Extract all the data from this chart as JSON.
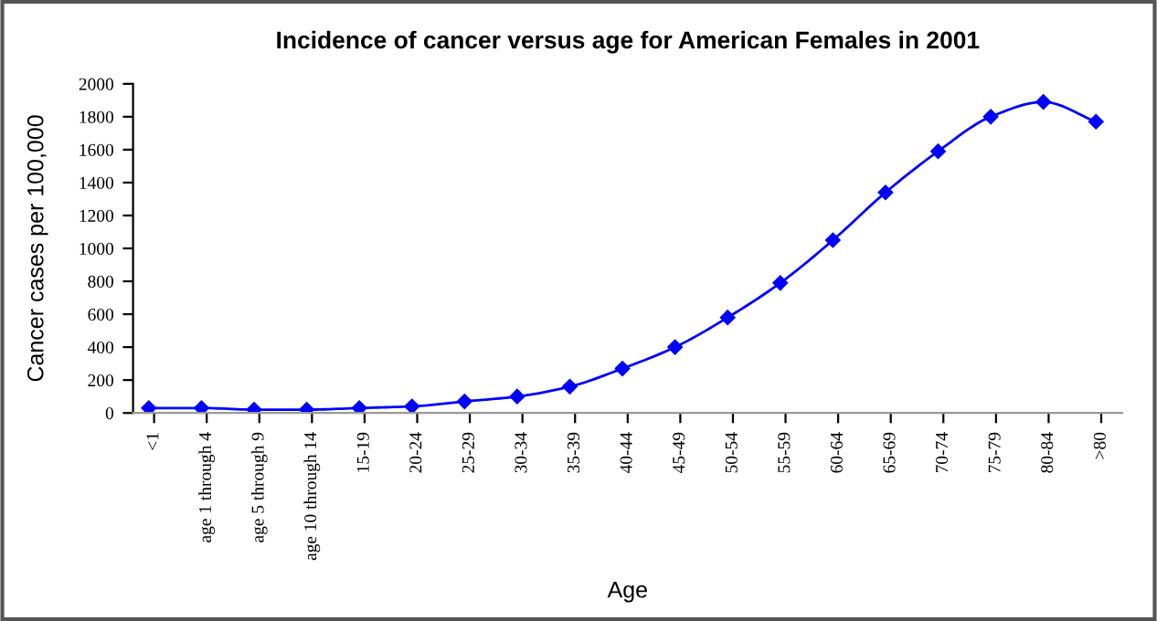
{
  "chart_data": {
    "type": "line",
    "title": "Incidence of cancer versus age for American Females in 2001",
    "xlabel": "Age",
    "ylabel": "Cancer cases per 100,000",
    "categories": [
      "<1",
      "age 1 through 4",
      "age 5 through 9",
      "age 10 through 14",
      "15-19",
      "20-24",
      "25-29",
      "30-34",
      "35-39",
      "40-44",
      "45-49",
      "50-54",
      "55-59",
      "60-64",
      "65-69",
      "70-74",
      "75-79",
      "80-84",
      ">80"
    ],
    "series": [
      {
        "color": "#0000ff",
        "values": [
          30,
          30,
          20,
          20,
          30,
          40,
          70,
          100,
          160,
          270,
          400,
          580,
          790,
          1050,
          1340,
          1590,
          1800,
          1890,
          1770
        ]
      }
    ],
    "ylim": [
      0,
      2000
    ],
    "yticks": [
      0,
      200,
      400,
      600,
      800,
      1000,
      1200,
      1400,
      1600,
      1800,
      2000
    ],
    "grid": false,
    "legend": false,
    "marker": "diamond",
    "line_style": "solid"
  }
}
